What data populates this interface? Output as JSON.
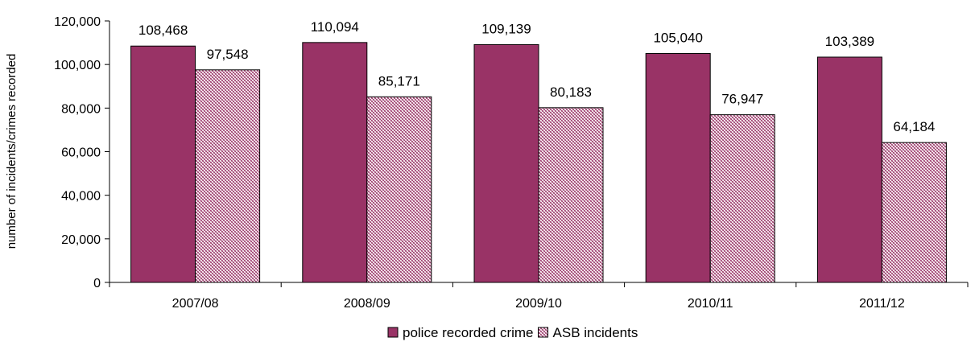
{
  "chart_data": {
    "type": "bar",
    "title": "",
    "xlabel": "",
    "ylabel": "number of incidents/crimes recorded",
    "categories": [
      "2007/08",
      "2008/09",
      "2009/10",
      "2010/11",
      "2011/12"
    ],
    "series": [
      {
        "name": "police recorded crime",
        "values": [
          108468,
          110094,
          109139,
          105040,
          103389
        ],
        "labels": [
          "108,468",
          "110,094",
          "109,139",
          "105,040",
          "103,389"
        ],
        "color": "#993366",
        "fill": "solid"
      },
      {
        "name": "ASB incidents",
        "values": [
          97548,
          85171,
          80183,
          76947,
          64184
        ],
        "labels": [
          "97,548",
          "85,171",
          "80,183",
          "76,947",
          "64,184"
        ],
        "color": "#993366",
        "fill": "crosshatch"
      }
    ],
    "ylim": [
      0,
      120000
    ],
    "yticks": [
      0,
      20000,
      40000,
      60000,
      80000,
      100000,
      120000
    ],
    "ytick_labels": [
      "0",
      "20,000",
      "40,000",
      "60,000",
      "80,000",
      "100,000",
      "120,000"
    ],
    "grid": false,
    "legend": "bottom"
  }
}
